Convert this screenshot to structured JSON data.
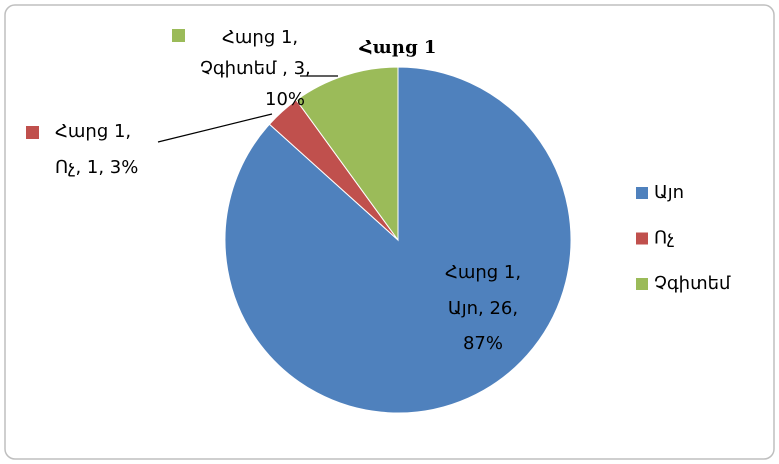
{
  "chart_data": {
    "type": "pie",
    "title": "Հարց 1",
    "categories": [
      "Այո",
      "Ոչ",
      "Չգիտեմ"
    ],
    "values": [
      26,
      1,
      3
    ],
    "colors": [
      "#4f81bd",
      "#c0504d",
      "#9bbb59"
    ],
    "data_labels": [
      [
        "Հարց 1,",
        "Այո, 26,",
        "87%"
      ],
      [
        "Հարց 1,",
        "Ոչ, 1, 3%"
      ],
      [
        "Հարց 1,",
        "Չգիտեմ , 3,",
        "10%"
      ]
    ],
    "legend": "right"
  }
}
